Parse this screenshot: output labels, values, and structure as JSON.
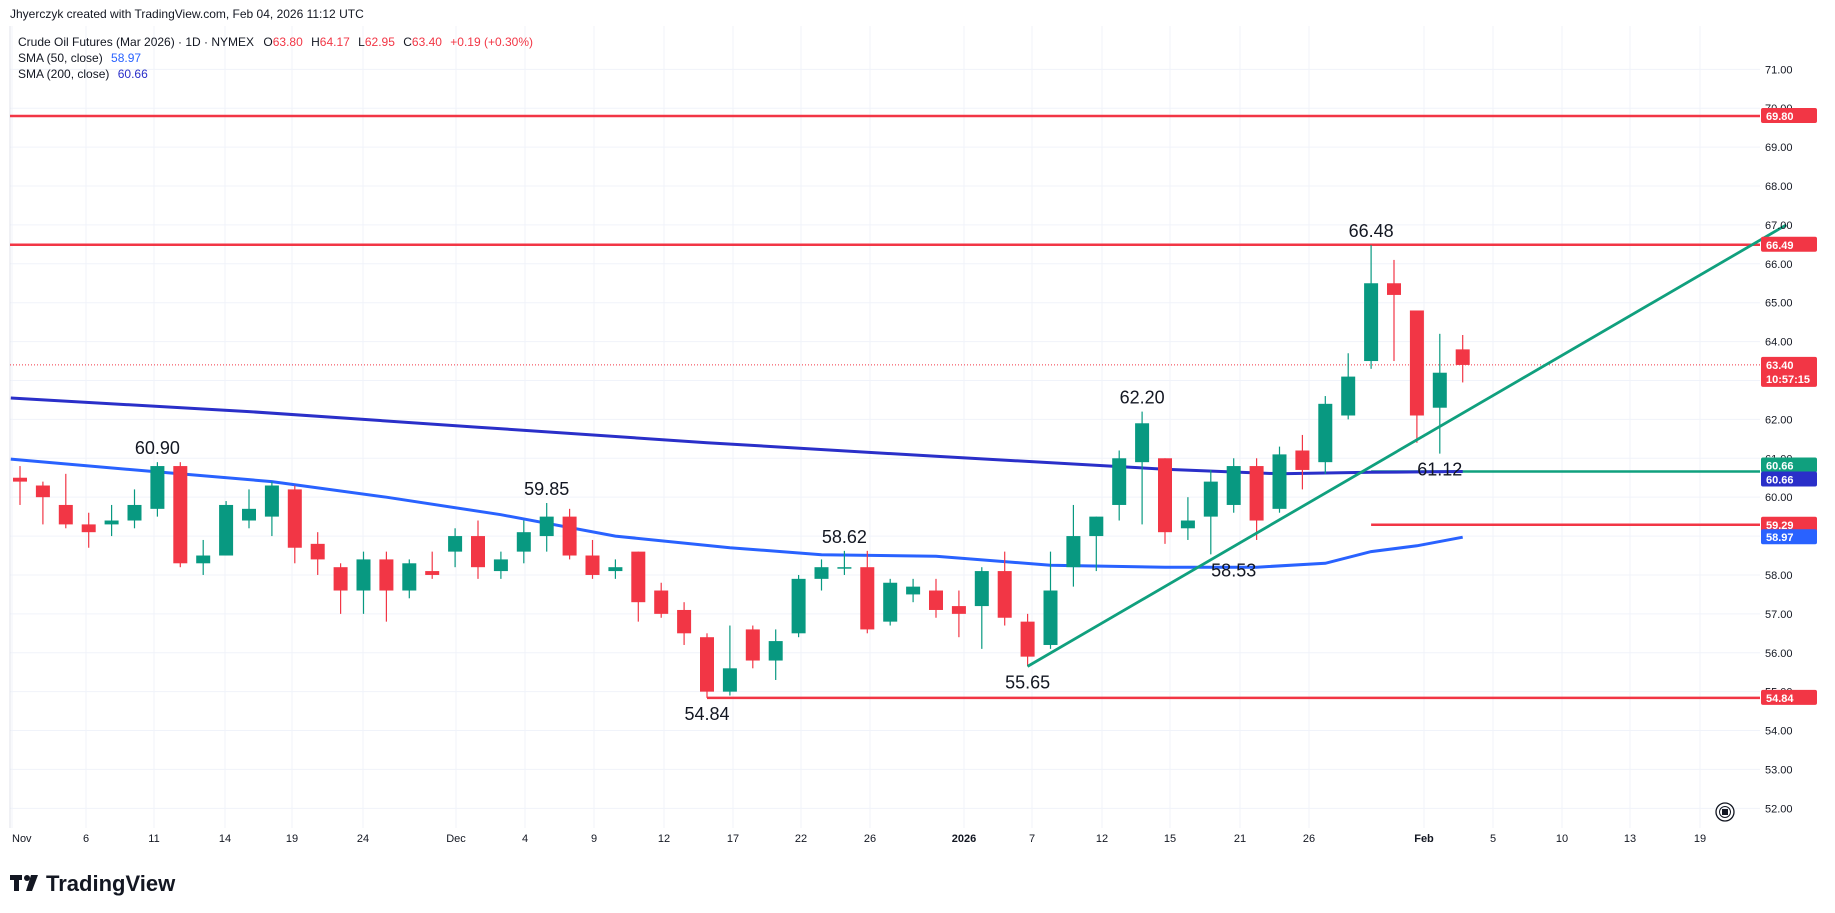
{
  "header": {
    "credit": "Jhyerczyk created with TradingView.com, Feb 04, 2026 11:12 UTC"
  },
  "legend": {
    "symbol": "Crude Oil Futures (Mar 2026) · 1D · NYMEX",
    "o_label": "O",
    "o_value": "63.80",
    "h_label": "H",
    "h_value": "64.17",
    "l_label": "L",
    "l_value": "62.95",
    "c_label": "C",
    "c_value": "63.40",
    "change": "+0.19 (+0.30%)",
    "sma50_label": "SMA (50, close)",
    "sma50_value": "58.97",
    "sma200_label": "SMA (200, close)",
    "sma200_value": "60.66"
  },
  "colors": {
    "up": "#089981",
    "down": "#f23645",
    "sma50": "#2962ff",
    "sma200": "#2a2fc9",
    "trendline": "#10a07e",
    "resistance": "#f23645",
    "grid": "#f0f3fa"
  },
  "footer": {
    "brand": "TradingView",
    "logo_icon": "tradingview-logo-icon",
    "reset_icon": "reset-scale-icon"
  },
  "chart_data": {
    "type": "candlestick",
    "ylim": [
      51.7,
      71.6
    ],
    "y_ticks": [
      "52.00",
      "53.00",
      "54.00",
      "55.00",
      "56.00",
      "57.00",
      "58.00",
      "59.00",
      "60.00",
      "61.00",
      "62.00",
      "63.00",
      "64.00",
      "65.00",
      "66.00",
      "67.00",
      "68.00",
      "69.00",
      "70.00",
      "71.00"
    ],
    "x_ticks": [
      "Nov",
      "6",
      "11",
      "14",
      "19",
      "24",
      "Dec",
      "4",
      "9",
      "12",
      "17",
      "22",
      "26",
      "2026",
      "7",
      "12",
      "15",
      "21",
      "26",
      "Feb",
      "5",
      "10",
      "13",
      "19"
    ],
    "candles": [
      {
        "o": 60.5,
        "h": 60.8,
        "l": 59.8,
        "c": 60.4
      },
      {
        "o": 60.3,
        "h": 60.4,
        "l": 59.3,
        "c": 60.0
      },
      {
        "o": 59.8,
        "h": 60.6,
        "l": 59.2,
        "c": 59.3
      },
      {
        "o": 59.3,
        "h": 59.6,
        "l": 58.7,
        "c": 59.1
      },
      {
        "o": 59.3,
        "h": 59.8,
        "l": 59.0,
        "c": 59.4
      },
      {
        "o": 59.4,
        "h": 60.2,
        "l": 59.2,
        "c": 59.8
      },
      {
        "o": 59.7,
        "h": 60.9,
        "l": 59.5,
        "c": 60.8
      },
      {
        "o": 60.8,
        "h": 60.9,
        "l": 58.2,
        "c": 58.3
      },
      {
        "o": 58.3,
        "h": 58.9,
        "l": 58.0,
        "c": 58.5
      },
      {
        "o": 58.5,
        "h": 59.9,
        "l": 58.5,
        "c": 59.8
      },
      {
        "o": 59.4,
        "h": 60.2,
        "l": 59.2,
        "c": 59.7
      },
      {
        "o": 59.5,
        "h": 60.4,
        "l": 59.0,
        "c": 60.3
      },
      {
        "o": 60.2,
        "h": 60.3,
        "l": 58.3,
        "c": 58.7
      },
      {
        "o": 58.8,
        "h": 59.1,
        "l": 58.0,
        "c": 58.4
      },
      {
        "o": 58.2,
        "h": 58.3,
        "l": 57.0,
        "c": 57.6
      },
      {
        "o": 57.6,
        "h": 58.6,
        "l": 57.0,
        "c": 58.4
      },
      {
        "o": 58.4,
        "h": 58.6,
        "l": 56.8,
        "c": 57.6
      },
      {
        "o": 57.6,
        "h": 58.4,
        "l": 57.4,
        "c": 58.3
      },
      {
        "o": 58.1,
        "h": 58.6,
        "l": 57.9,
        "c": 58.0
      },
      {
        "o": 58.6,
        "h": 59.2,
        "l": 58.2,
        "c": 59.0
      },
      {
        "o": 59.0,
        "h": 59.4,
        "l": 57.9,
        "c": 58.2
      },
      {
        "o": 58.1,
        "h": 58.6,
        "l": 57.9,
        "c": 58.4
      },
      {
        "o": 58.6,
        "h": 59.4,
        "l": 58.3,
        "c": 59.1
      },
      {
        "o": 59.0,
        "h": 59.85,
        "l": 58.6,
        "c": 59.5
      },
      {
        "o": 59.5,
        "h": 59.7,
        "l": 58.4,
        "c": 58.5
      },
      {
        "o": 58.5,
        "h": 58.9,
        "l": 57.9,
        "c": 58.0
      },
      {
        "o": 58.1,
        "h": 58.4,
        "l": 57.9,
        "c": 58.2
      },
      {
        "o": 58.6,
        "h": 58.6,
        "l": 56.8,
        "c": 57.3
      },
      {
        "o": 57.6,
        "h": 57.8,
        "l": 56.9,
        "c": 57.0
      },
      {
        "o": 57.1,
        "h": 57.3,
        "l": 56.2,
        "c": 56.5
      },
      {
        "o": 56.4,
        "h": 56.5,
        "l": 54.84,
        "c": 55.0
      },
      {
        "o": 55.0,
        "h": 56.7,
        "l": 54.9,
        "c": 55.6
      },
      {
        "o": 56.6,
        "h": 56.7,
        "l": 55.6,
        "c": 55.8
      },
      {
        "o": 55.8,
        "h": 56.6,
        "l": 55.3,
        "c": 56.3
      },
      {
        "o": 56.5,
        "h": 58.0,
        "l": 56.4,
        "c": 57.9
      },
      {
        "o": 57.9,
        "h": 58.4,
        "l": 57.6,
        "c": 58.2
      },
      {
        "o": 58.2,
        "h": 58.62,
        "l": 58.0,
        "c": 58.2
      },
      {
        "o": 58.2,
        "h": 58.62,
        "l": 56.5,
        "c": 56.6
      },
      {
        "o": 56.8,
        "h": 57.9,
        "l": 56.7,
        "c": 57.8
      },
      {
        "o": 57.5,
        "h": 57.9,
        "l": 57.3,
        "c": 57.7
      },
      {
        "o": 57.6,
        "h": 57.9,
        "l": 56.9,
        "c": 57.1
      },
      {
        "o": 57.2,
        "h": 57.6,
        "l": 56.4,
        "c": 57.0
      },
      {
        "o": 57.2,
        "h": 58.2,
        "l": 56.1,
        "c": 58.1
      },
      {
        "o": 58.1,
        "h": 58.6,
        "l": 56.7,
        "c": 56.9
      },
      {
        "o": 56.8,
        "h": 57.0,
        "l": 55.65,
        "c": 55.9
      },
      {
        "o": 56.2,
        "h": 58.6,
        "l": 56.1,
        "c": 57.6
      },
      {
        "o": 58.2,
        "h": 59.8,
        "l": 57.7,
        "c": 59.0
      },
      {
        "o": 59.0,
        "h": 59.5,
        "l": 58.1,
        "c": 59.5
      },
      {
        "o": 59.8,
        "h": 61.2,
        "l": 59.4,
        "c": 61.0
      },
      {
        "o": 60.9,
        "h": 62.2,
        "l": 59.3,
        "c": 61.9
      },
      {
        "o": 61.0,
        "h": 61.0,
        "l": 58.8,
        "c": 59.1
      },
      {
        "o": 59.2,
        "h": 60.0,
        "l": 58.9,
        "c": 59.4
      },
      {
        "o": 59.5,
        "h": 60.7,
        "l": 58.53,
        "c": 60.4
      },
      {
        "o": 59.8,
        "h": 61.0,
        "l": 59.6,
        "c": 60.8
      },
      {
        "o": 60.8,
        "h": 61.0,
        "l": 58.9,
        "c": 59.4
      },
      {
        "o": 59.7,
        "h": 61.3,
        "l": 59.6,
        "c": 61.1
      },
      {
        "o": 61.2,
        "h": 61.6,
        "l": 60.2,
        "c": 60.7
      },
      {
        "o": 60.9,
        "h": 62.6,
        "l": 60.6,
        "c": 62.4
      },
      {
        "o": 62.1,
        "h": 63.7,
        "l": 62.0,
        "c": 63.1
      },
      {
        "o": 63.5,
        "h": 66.48,
        "l": 63.3,
        "c": 65.5
      },
      {
        "o": 65.5,
        "h": 66.1,
        "l": 63.5,
        "c": 65.2
      },
      {
        "o": 64.8,
        "h": 64.8,
        "l": 61.4,
        "c": 62.1
      },
      {
        "o": 62.3,
        "h": 64.2,
        "l": 61.12,
        "c": 63.2
      },
      {
        "o": 63.8,
        "h": 64.17,
        "l": 62.95,
        "c": 63.4
      }
    ],
    "annotations": [
      {
        "text": "60.90",
        "index": 6,
        "price": 60.9,
        "pos": "above"
      },
      {
        "text": "59.85",
        "index": 23,
        "price": 59.85,
        "pos": "above"
      },
      {
        "text": "54.84",
        "index": 30,
        "price": 54.84,
        "pos": "below"
      },
      {
        "text": "58.62",
        "index": 36,
        "price": 58.62,
        "pos": "above"
      },
      {
        "text": "55.65",
        "index": 44,
        "price": 55.65,
        "pos": "below"
      },
      {
        "text": "62.20",
        "index": 49,
        "price": 62.2,
        "pos": "above"
      },
      {
        "text": "58.53",
        "index": 53,
        "price": 58.53,
        "pos": "below"
      },
      {
        "text": "66.48",
        "index": 59,
        "price": 66.48,
        "pos": "above"
      },
      {
        "text": "61.12",
        "index": 62,
        "price": 61.12,
        "pos": "below"
      }
    ],
    "horizontal_lines": [
      {
        "price": 69.8,
        "color": "#f23645",
        "from": "start"
      },
      {
        "price": 66.49,
        "color": "#f23645",
        "from": "start"
      },
      {
        "price": 54.84,
        "color": "#f23645",
        "from_index": 30
      },
      {
        "price": 59.29,
        "color": "#f23645",
        "from_index": 59
      },
      {
        "price": 60.66,
        "color": "#10a07e",
        "from_index": 59
      }
    ],
    "trendline": {
      "from": {
        "index": 44,
        "price": 55.65
      },
      "to": {
        "index": 78,
        "price": 67.0
      }
    },
    "sma50": [
      [
        0,
        60.98
      ],
      [
        6,
        60.65
      ],
      [
        11,
        60.4
      ],
      [
        16,
        60.0
      ],
      [
        21,
        59.55
      ],
      [
        26,
        59.0
      ],
      [
        31,
        58.7
      ],
      [
        35,
        58.52
      ],
      [
        40,
        58.48
      ],
      [
        45,
        58.25
      ],
      [
        50,
        58.2
      ],
      [
        54,
        58.2
      ],
      [
        57,
        58.3
      ],
      [
        59,
        58.6
      ],
      [
        61,
        58.75
      ],
      [
        63,
        58.97
      ]
    ],
    "sma200": [
      [
        0,
        62.55
      ],
      [
        10,
        62.2
      ],
      [
        20,
        61.8
      ],
      [
        30,
        61.4
      ],
      [
        40,
        61.05
      ],
      [
        50,
        60.72
      ],
      [
        55,
        60.6
      ],
      [
        59,
        60.64
      ],
      [
        63,
        60.66
      ]
    ],
    "price_badges": [
      {
        "text": "69.80",
        "price": 69.8,
        "color": "#f23645"
      },
      {
        "text": "66.49",
        "price": 66.49,
        "color": "#f23645"
      },
      {
        "text": "63.40",
        "price": 63.4,
        "color": "#f23645",
        "sub": "10:57:15"
      },
      {
        "text": "60.66",
        "price": 60.66,
        "color": "#10a07e",
        "offset": -6
      },
      {
        "text": "60.66",
        "price": 60.66,
        "color": "#2a2fc9",
        "offset": 8
      },
      {
        "text": "59.29",
        "price": 59.29,
        "color": "#f23645"
      },
      {
        "text": "58.97",
        "price": 58.97,
        "color": "#2962ff"
      },
      {
        "text": "54.84",
        "price": 54.84,
        "color": "#f23645"
      }
    ]
  }
}
